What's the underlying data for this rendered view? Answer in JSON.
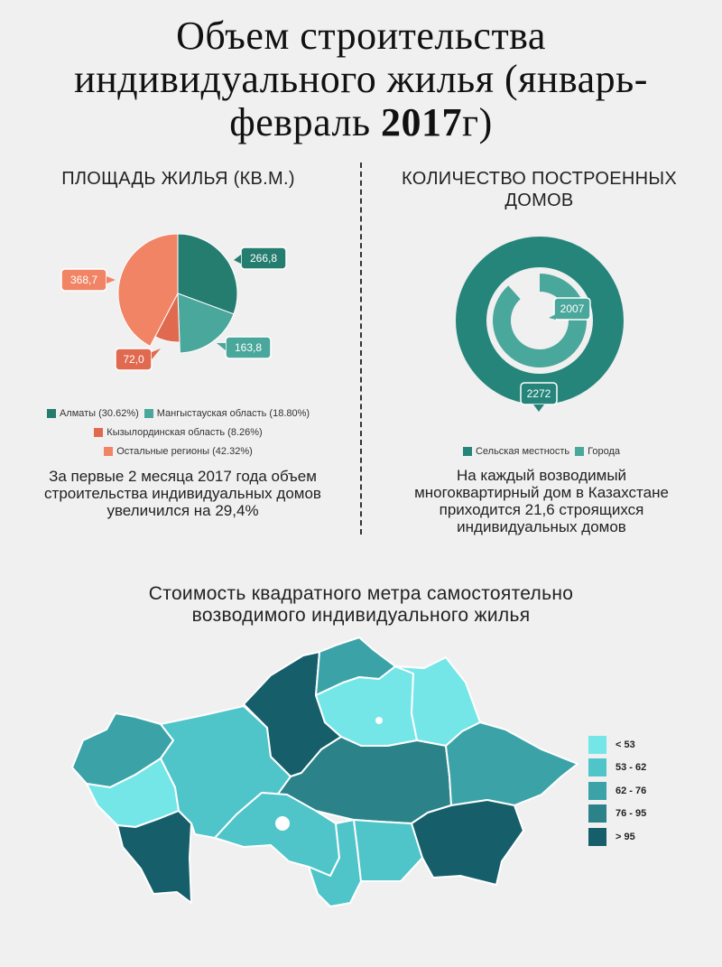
{
  "title": {
    "line1": "Объем строительства",
    "line2": "индивидуального жилья (январь-",
    "line3_pre": "февраль ",
    "line3_year": "2017",
    "line3_post": "г)"
  },
  "left_section": {
    "heading": "ПЛОЩАДЬ ЖИЛЬЯ (КВ.М.)",
    "note": [
      "За первые 2 месяца 2017 года объем",
      "строительства индивидуальных домов",
      "увеличился на 29,4%"
    ]
  },
  "right_section": {
    "heading": [
      "КОЛИЧЕСТВО ПОСТРОЕННЫХ",
      "ДОМОВ"
    ],
    "note": [
      "На каждый возводимый",
      "многоквартирный дом в Казахстане",
      "приходится 21,6 строящихся",
      "индивидуальных домов"
    ]
  },
  "colors": {
    "almaty": "#257d70",
    "mangystau": "#4aa79b",
    "kyzylorda": "#e06a4f",
    "others": "#f28466",
    "rural": "#26857a",
    "cities": "#4aa79b",
    "scale": [
      "#74e6e8",
      "#4fc5c9",
      "#3ba3a8",
      "#2b8389",
      "#165f6a"
    ]
  },
  "chart_data": [
    {
      "type": "pie",
      "title": "ПЛОЩАДЬ ЖИЛЬЯ (КВ.М.)",
      "slices": [
        {
          "name": "Алматы",
          "value": 266.8,
          "label": "266,8",
          "legend": "Алматы (30.62%)",
          "color": "#257d70"
        },
        {
          "name": "Мангыстауская область",
          "value": 163.8,
          "label": "163,8",
          "legend": "Мангыстауская область (18.80%)",
          "color": "#4aa79b"
        },
        {
          "name": "Кызылординская область",
          "value": 72.0,
          "label": "72,0",
          "legend": "Кызылординская область (8.26%)",
          "color": "#e06a4f"
        },
        {
          "name": "Остальные регионы",
          "value": 368.7,
          "label": "368,7",
          "legend": "Остальные регионы (42.32%)",
          "color": "#f28466"
        }
      ]
    },
    {
      "type": "radial-bar",
      "title": "КОЛИЧЕСТВО ПОСТРОЕННЫХ ДОМОВ",
      "series": [
        {
          "name": "Сельская местность",
          "value": 2272,
          "label": "2272",
          "color": "#26857a"
        },
        {
          "name": "Города",
          "value": 2007,
          "label": "2007",
          "color": "#4aa79b"
        }
      ]
    },
    {
      "type": "choropleth",
      "title": "Стоимость квадратного метра самостоятельно возводимого индивидуального жилья",
      "legend": [
        "< 53",
        "53 - 62",
        "62 - 76",
        "76 - 95",
        "> 95"
      ]
    }
  ],
  "map": {
    "title": [
      "Стоимость квадратного метра самостоятельно",
      "возводимого индивидуального жилья"
    ]
  }
}
